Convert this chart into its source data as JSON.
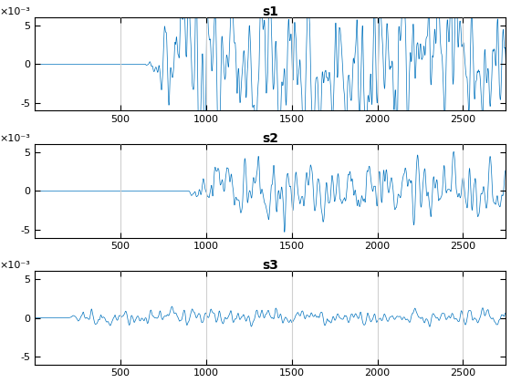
{
  "titles": [
    "s1",
    "s2",
    "s3"
  ],
  "n_points": 2750,
  "line_color": "#0072BD",
  "line_width": 0.5,
  "ylim": [
    -0.006,
    0.006
  ],
  "yticks": [
    -0.005,
    0,
    0.005
  ],
  "ytick_labels": [
    "-5",
    "0",
    "5"
  ],
  "xlim": [
    1,
    2750
  ],
  "xticks": [
    500,
    1000,
    1500,
    2000,
    2500
  ],
  "bg_color": "#ffffff",
  "s1_onset": 645,
  "s1_amp": 0.0048,
  "s2_onset": 895,
  "s2_amp": 0.0019,
  "s3_onset": 180,
  "s3_amp": 0.00045,
  "figsize": [
    5.6,
    4.2
  ],
  "dpi": 100,
  "grid_color": "#d0d0d0",
  "title_fontsize": 10,
  "tick_fontsize": 8,
  "sci_label": "×10⁻³"
}
